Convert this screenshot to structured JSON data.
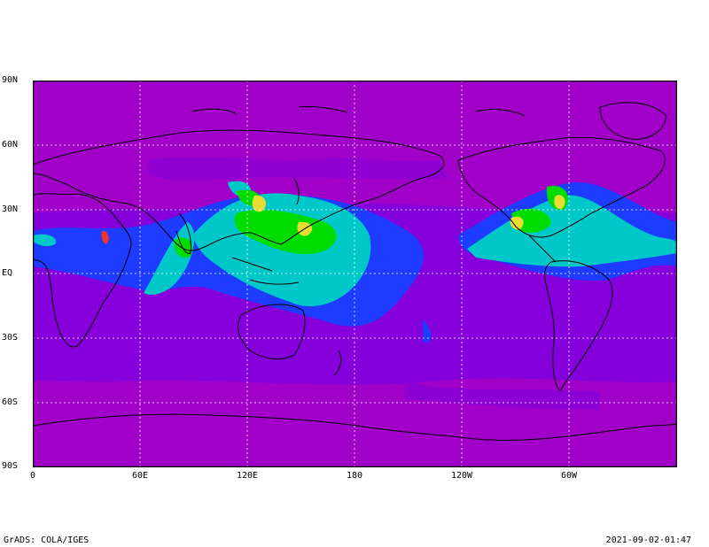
{
  "map": {
    "lat_labels": [
      "90N",
      "60N",
      "30N",
      "EQ",
      "30S",
      "60S",
      "90S"
    ],
    "lon_labels": [
      "0",
      "60E",
      "120E",
      "180",
      "120W",
      "60W"
    ],
    "colors": {
      "background": "#a000c8",
      "ocean_low": "#8200dc",
      "band_blue": "#1e3cff",
      "band_cyan": "#00c8c8",
      "band_green": "#00dc00",
      "band_yellow": "#e6dc32",
      "band_red": "#f03228",
      "coastline": "#000000",
      "grid": "#ffffff"
    },
    "grid": "dotted"
  },
  "footer": {
    "credit": "GrADS: COLA/IGES",
    "timestamp": "2021-09-02-01:47"
  }
}
